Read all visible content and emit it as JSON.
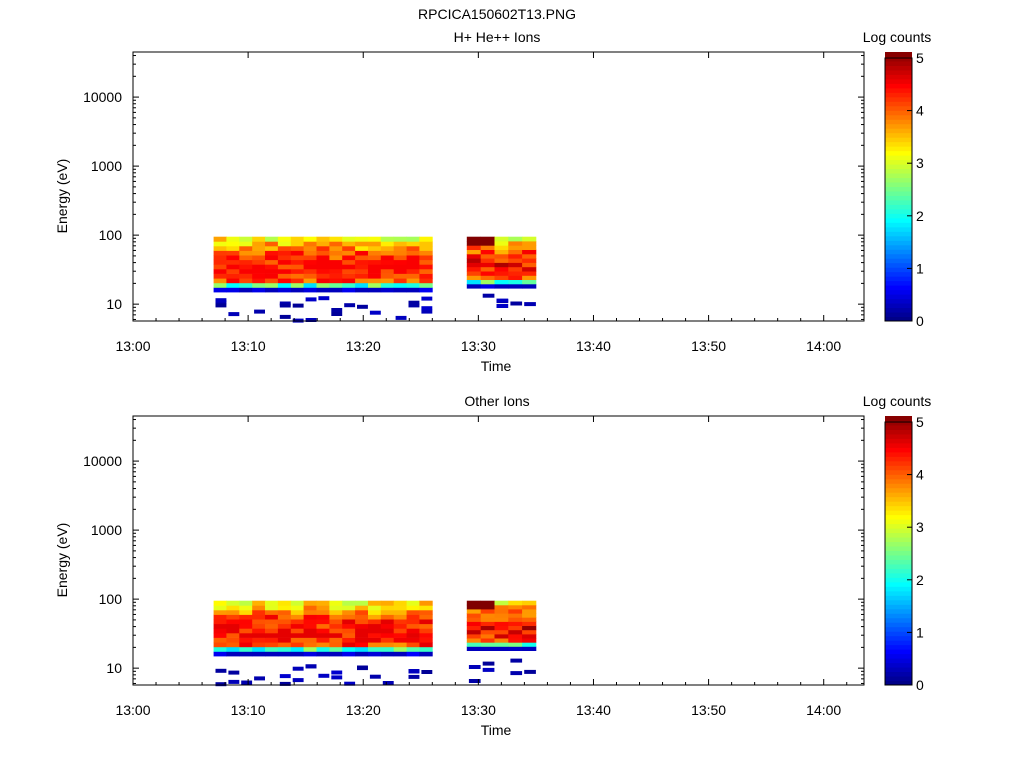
{
  "figure": {
    "title": "RPCICA150602T13.PNG"
  },
  "chart_data": [
    {
      "type": "heatmap",
      "title": "H+ He++ Ions",
      "xlabel": "Time",
      "ylabel": "Energy (eV)",
      "x_ticks": [
        "13:00",
        "13:10",
        "13:20",
        "13:30",
        "13:40",
        "13:50",
        "14:00"
      ],
      "y_ticks": [
        "10",
        "100",
        "1000",
        "10000"
      ],
      "y_scale": "log",
      "ylim": [
        5.7,
        45000
      ],
      "xlim_minutes": [
        0,
        63.5
      ],
      "colorbar": {
        "label": "Log counts",
        "ticks": [
          "0",
          "1",
          "2",
          "3",
          "4",
          "5"
        ],
        "range": [
          0,
          5
        ],
        "colormap": "jet"
      },
      "data_segments": [
        {
          "start": "13:07",
          "end": "13:26",
          "energy_range_eV": [
            15,
            95
          ],
          "peak_log_counts": 4.4
        },
        {
          "start": "13:29",
          "end": "13:35",
          "energy_range_eV": [
            17,
            95
          ],
          "peak_log_counts": 5.0
        }
      ]
    },
    {
      "type": "heatmap",
      "title": "Other Ions",
      "xlabel": "Time",
      "ylabel": "Energy (eV)",
      "x_ticks": [
        "13:00",
        "13:10",
        "13:20",
        "13:30",
        "13:40",
        "13:50",
        "14:00"
      ],
      "y_ticks": [
        "10",
        "100",
        "1000",
        "10000"
      ],
      "y_scale": "log",
      "ylim": [
        5.7,
        45000
      ],
      "xlim_minutes": [
        0,
        63.5
      ],
      "colorbar": {
        "label": "Log counts",
        "ticks": [
          "0",
          "1",
          "2",
          "3",
          "4",
          "5"
        ],
        "range": [
          0,
          5
        ],
        "colormap": "jet"
      },
      "data_segments": [
        {
          "start": "13:07",
          "end": "13:26",
          "energy_range_eV": [
            15,
            95
          ],
          "peak_log_counts": 4.5
        },
        {
          "start": "13:29",
          "end": "13:35",
          "energy_range_eV": [
            18,
            95
          ],
          "peak_log_counts": 5.0
        }
      ]
    }
  ]
}
